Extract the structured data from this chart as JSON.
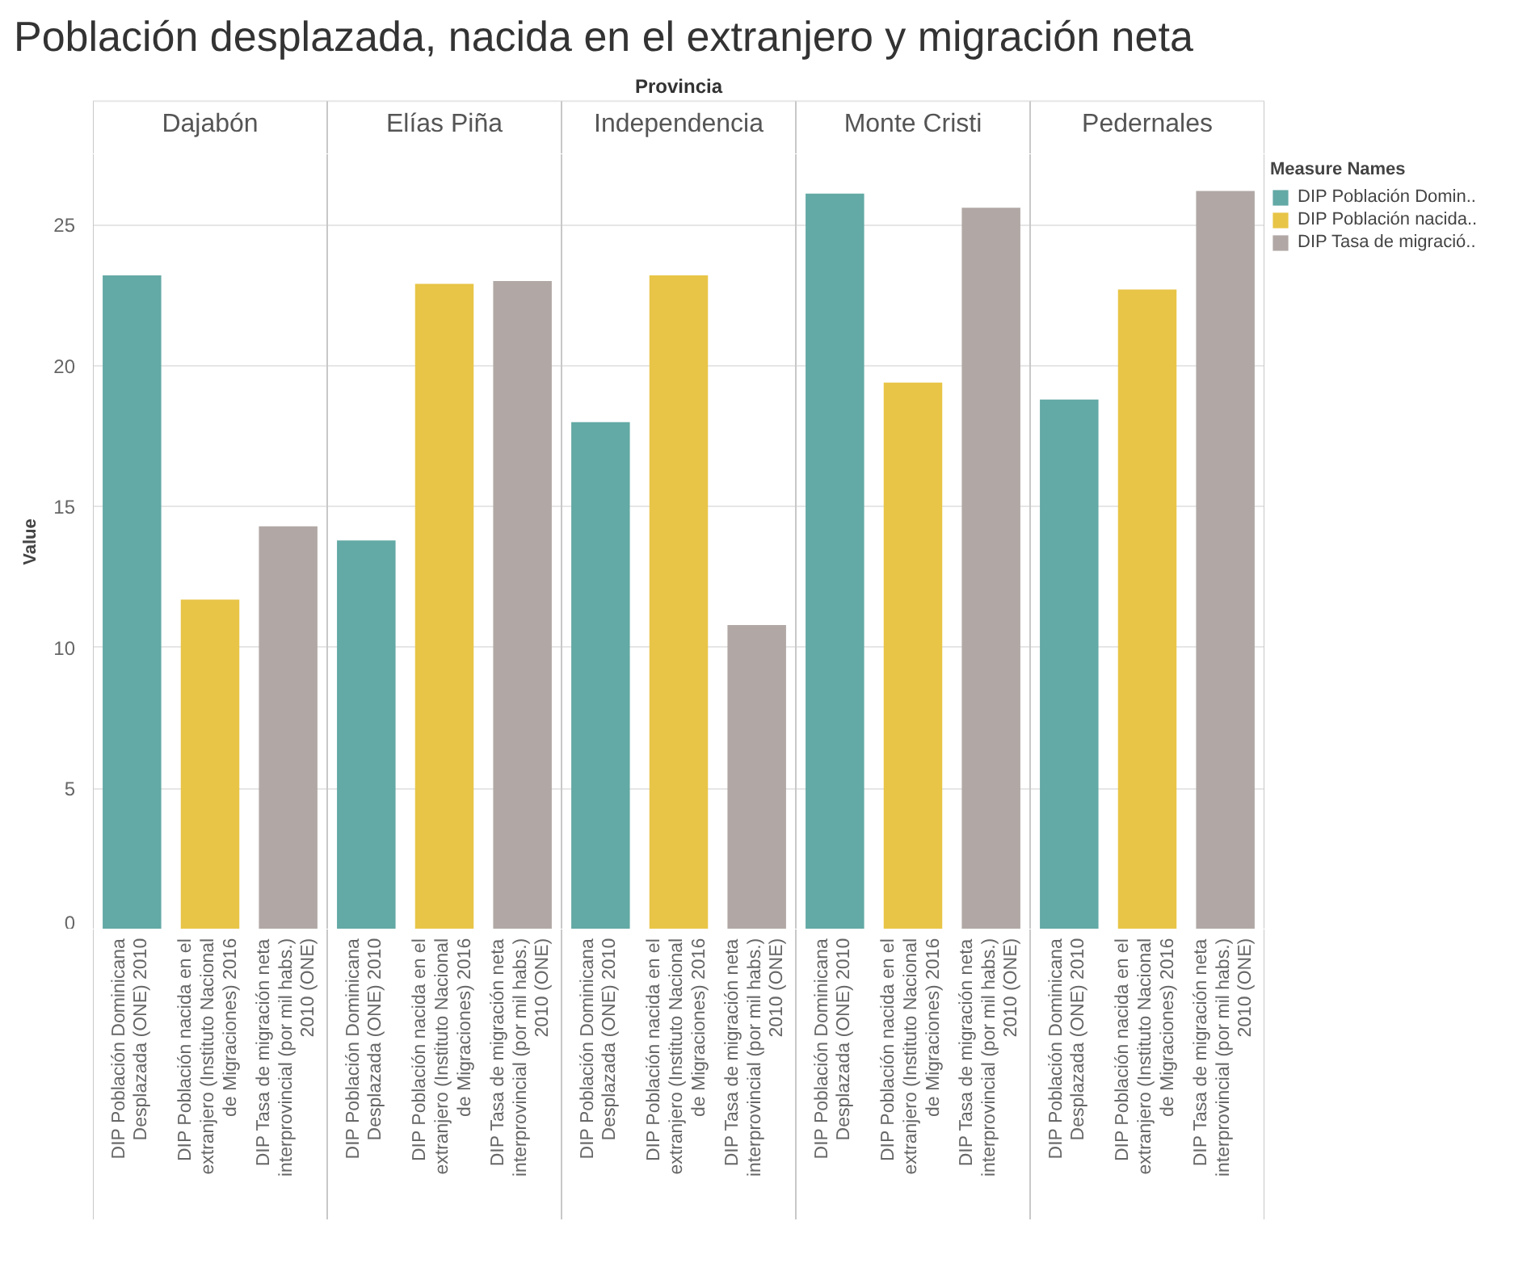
{
  "chart_data": {
    "type": "bar",
    "title": "Población desplazada, nacida en el extranjero y migración neta",
    "xlabel": "Provincia",
    "ylabel": "Value",
    "legend_title": "Measure Names",
    "categories": [
      "DIP Población Dominicana Desplazada (ONE) 2010",
      "DIP Población nacida en el extranjero (Instituto Nacional de Migraciones) 2016",
      "DIP Tasa de migración neta interprovincial (por mil habs.) 2010 (ONE)",
      "DIP Población Dominicana Desplazada (ONE) 2010",
      "DIP Población nacida en el extranjero (Instituto Nacional de Migraciones) 2016",
      "DIP Tasa de migración neta interprovincial (por mil habs.) 2010 (ONE)",
      "DIP Población Dominicana Desplazada (ONE) 2010",
      "DIP Población nacida en el extranjero (Instituto Nacional de Migraciones) 2016",
      "DIP Tasa de migración neta interprovincial (por mil habs.) 2010 (ONE)",
      "DIP Población Dominicana Desplazada (ONE) 2010",
      "DIP Población nacida en el extranjero (Instituto Nacional de Migraciones) 2016",
      "DIP Tasa de migración neta interprovincial (por mil habs.) 2010 (ONE)",
      "DIP Población Dominicana Desplazada (ONE) 2010",
      "DIP Población nacida en el extranjero (Instituto Nacional de Migraciones) 2016",
      "DIP Tasa de migración neta interprovincial (por mil habs.) 2010 (ONE)"
    ],
    "series": [
      {
        "name": "DIP Población Domin..",
        "color": "#63a9a5",
        "values": [
          23.2,
          null,
          null,
          13.8,
          null,
          null,
          18.0,
          null,
          null,
          26.1,
          null,
          null,
          18.8,
          null,
          null
        ]
      },
      {
        "name": "DIP Población nacida..",
        "color": "#e8c547",
        "values": [
          null,
          11.7,
          null,
          null,
          22.9,
          null,
          null,
          23.2,
          null,
          null,
          19.4,
          null,
          null,
          22.7,
          null
        ]
      },
      {
        "name": "DIP Tasa de migració..",
        "color": "#b1a8a5",
        "values": [
          null,
          null,
          14.3,
          null,
          null,
          23.0,
          null,
          null,
          10.8,
          null,
          null,
          25.6,
          null,
          null,
          26.2
        ]
      }
    ],
    "annotations": [
      "Dajabón",
      "Elías Piña",
      "Independencia",
      "Monte Cristi",
      "Pedernales"
    ],
    "ylim": [
      0,
      27.5
    ],
    "yticks": [
      0,
      5,
      10,
      15,
      20,
      25
    ],
    "grid": "y",
    "legend": "top right"
  }
}
